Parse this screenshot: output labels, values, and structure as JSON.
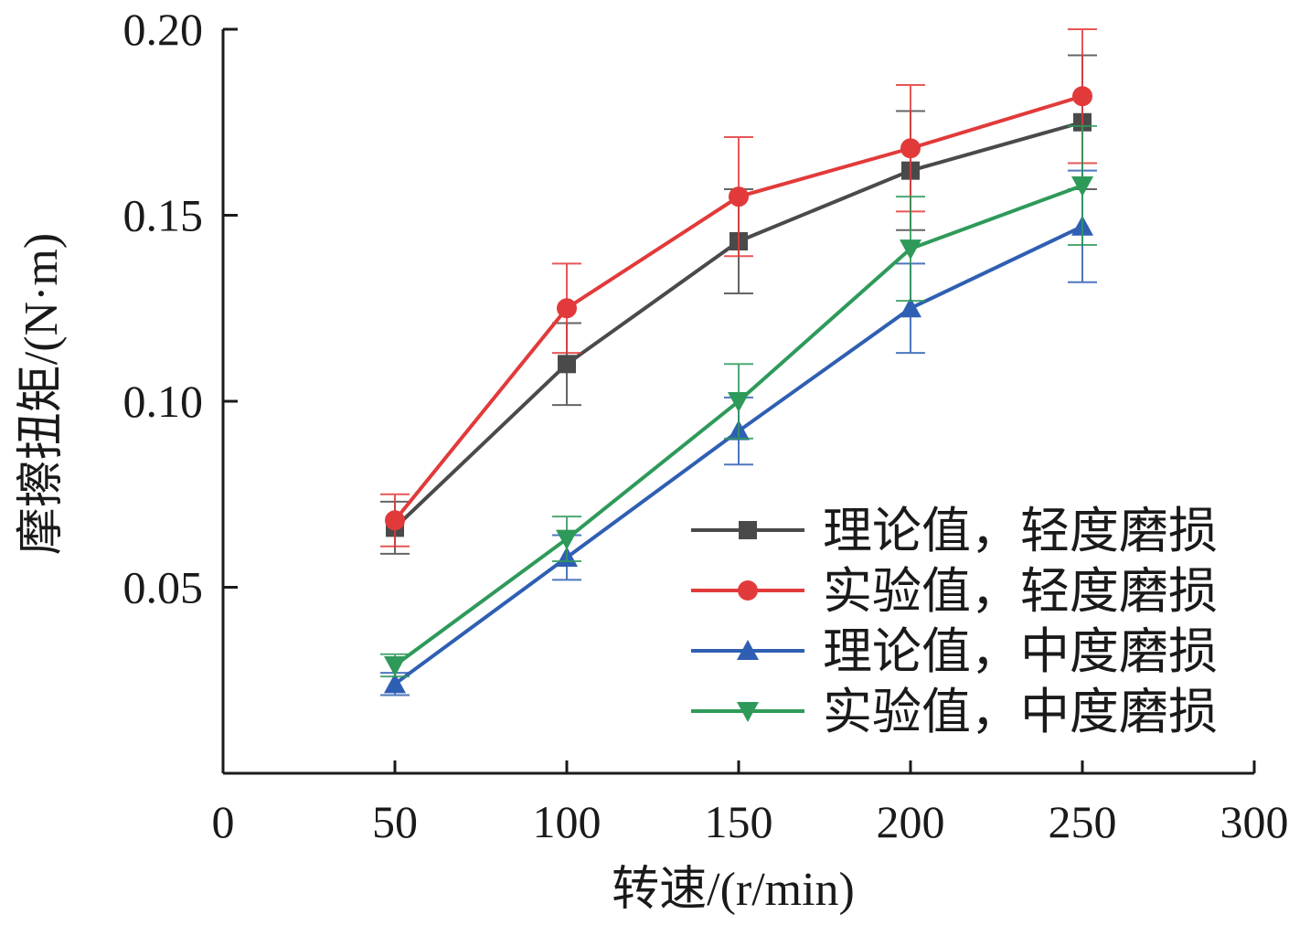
{
  "chart_data": {
    "type": "line",
    "xlabel": "转速/(r/min)",
    "ylabel": "摩擦扭矩/(N·m)",
    "xlim": [
      0,
      300
    ],
    "ylim": [
      0,
      0.2
    ],
    "x_ticks": [
      0,
      50,
      100,
      150,
      200,
      250,
      300
    ],
    "x_tick_labels": [
      "0",
      "50",
      "100",
      "150",
      "200",
      "250",
      "300"
    ],
    "y_ticks": [
      0.05,
      0.1,
      0.15,
      0.2
    ],
    "y_tick_labels": [
      "0.05",
      "0.10",
      "0.15",
      "0.20"
    ],
    "grid": false,
    "legend_position": "bottom-right",
    "x": [
      50,
      100,
      150,
      200,
      250
    ],
    "series": [
      {
        "name": "理论值，轻度磨损",
        "color": "#4a4a4a",
        "marker": "square",
        "values": [
          0.066,
          0.11,
          0.143,
          0.162,
          0.175
        ],
        "error": [
          0.007,
          0.011,
          0.014,
          0.016,
          0.018
        ]
      },
      {
        "name": "实验值，轻度磨损",
        "color": "#e23a3a",
        "marker": "circle",
        "values": [
          0.068,
          0.125,
          0.155,
          0.168,
          0.182
        ],
        "error": [
          0.007,
          0.012,
          0.016,
          0.017,
          0.018
        ]
      },
      {
        "name": "理论值，中度磨损",
        "color": "#2f5fb3",
        "marker": "triangle-up",
        "values": [
          0.024,
          0.058,
          0.092,
          0.125,
          0.147
        ],
        "error": [
          0.003,
          0.006,
          0.009,
          0.012,
          0.015
        ]
      },
      {
        "name": "实验值，中度磨损",
        "color": "#2e9a5a",
        "marker": "triangle-down",
        "values": [
          0.029,
          0.063,
          0.1,
          0.141,
          0.158
        ],
        "error": [
          0.003,
          0.006,
          0.01,
          0.014,
          0.016
        ]
      }
    ]
  }
}
